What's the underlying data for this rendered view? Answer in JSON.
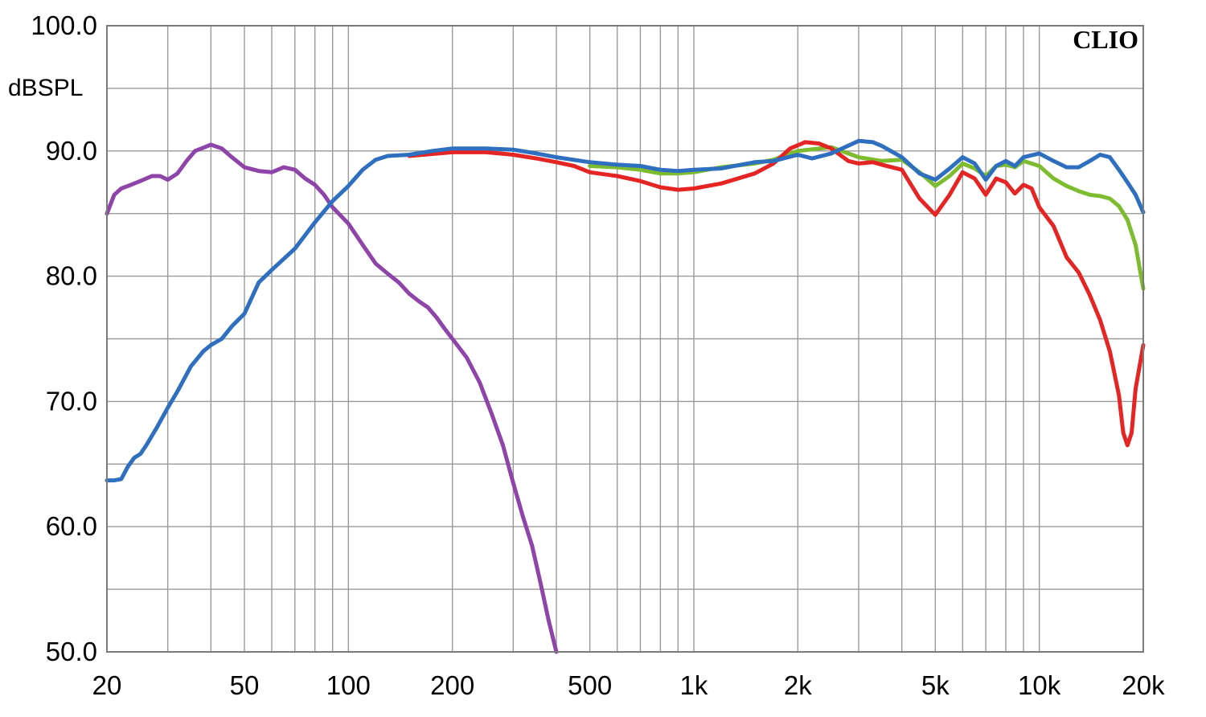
{
  "chart_data": {
    "type": "line",
    "title": "",
    "brand": "CLIO",
    "ylabel": "dBSPL",
    "xlabel": "",
    "x_scale": "log",
    "xlim": [
      20,
      20000
    ],
    "ylim": [
      50,
      100
    ],
    "grid": true,
    "y_ticks": [
      {
        "value": 100,
        "label": "100.0"
      },
      {
        "value": 90,
        "label": "90.0"
      },
      {
        "value": 80,
        "label": "80.0"
      },
      {
        "value": 70,
        "label": "70.0"
      },
      {
        "value": 60,
        "label": "60.0"
      },
      {
        "value": 50,
        "label": "50.0"
      }
    ],
    "x_ticks": [
      {
        "value": 20,
        "label": "20"
      },
      {
        "value": 50,
        "label": "50"
      },
      {
        "value": 100,
        "label": "100"
      },
      {
        "value": 200,
        "label": "200"
      },
      {
        "value": 500,
        "label": "500"
      },
      {
        "value": 1000,
        "label": "1k"
      },
      {
        "value": 2000,
        "label": "2k"
      },
      {
        "value": 5000,
        "label": "5k"
      },
      {
        "value": 10000,
        "label": "10k"
      },
      {
        "value": 20000,
        "label": "20k"
      }
    ],
    "series": [
      {
        "color": "#8e44a8",
        "points": [
          [
            20,
            85.0
          ],
          [
            21,
            86.5
          ],
          [
            22,
            87.0
          ],
          [
            23,
            87.2
          ],
          [
            25,
            87.6
          ],
          [
            27,
            88.0
          ],
          [
            28.5,
            88.0
          ],
          [
            30,
            87.7
          ],
          [
            32,
            88.2
          ],
          [
            34,
            89.2
          ],
          [
            36,
            90.0
          ],
          [
            40,
            90.5
          ],
          [
            43,
            90.2
          ],
          [
            46,
            89.5
          ],
          [
            50,
            88.7
          ],
          [
            55,
            88.4
          ],
          [
            60,
            88.3
          ],
          [
            65,
            88.7
          ],
          [
            70,
            88.5
          ],
          [
            75,
            87.8
          ],
          [
            80,
            87.3
          ],
          [
            85,
            86.5
          ],
          [
            90,
            85.5
          ],
          [
            100,
            84.2
          ],
          [
            110,
            82.5
          ],
          [
            120,
            81.0
          ],
          [
            130,
            80.2
          ],
          [
            140,
            79.5
          ],
          [
            150,
            78.6
          ],
          [
            160,
            78.0
          ],
          [
            170,
            77.5
          ],
          [
            180,
            76.7
          ],
          [
            190,
            75.8
          ],
          [
            200,
            75.0
          ],
          [
            220,
            73.5
          ],
          [
            240,
            71.5
          ],
          [
            260,
            69.0
          ],
          [
            280,
            66.5
          ],
          [
            300,
            63.5
          ],
          [
            320,
            60.8
          ],
          [
            340,
            58.5
          ],
          [
            360,
            55.5
          ],
          [
            380,
            52.5
          ],
          [
            400,
            50.0
          ]
        ]
      },
      {
        "color": "#7dbb2f",
        "points": [
          [
            500,
            88.8
          ],
          [
            600,
            88.7
          ],
          [
            700,
            88.5
          ],
          [
            800,
            88.2
          ],
          [
            900,
            88.2
          ],
          [
            1000,
            88.3
          ],
          [
            1200,
            88.7
          ],
          [
            1500,
            89.0
          ],
          [
            1700,
            89.3
          ],
          [
            2000,
            90.0
          ],
          [
            2500,
            90.3
          ],
          [
            3000,
            89.5
          ],
          [
            3500,
            89.2
          ],
          [
            4000,
            89.3
          ],
          [
            4500,
            88.3
          ],
          [
            5000,
            87.2
          ],
          [
            5500,
            88.0
          ],
          [
            6000,
            89.0
          ],
          [
            6500,
            88.6
          ],
          [
            7000,
            88.0
          ],
          [
            7500,
            88.8
          ],
          [
            8000,
            88.9
          ],
          [
            8500,
            88.7
          ],
          [
            9000,
            89.2
          ],
          [
            10000,
            88.8
          ],
          [
            11000,
            87.8
          ],
          [
            12000,
            87.2
          ],
          [
            13000,
            86.8
          ],
          [
            14000,
            86.5
          ],
          [
            15000,
            86.4
          ],
          [
            16000,
            86.2
          ],
          [
            17000,
            85.6
          ],
          [
            18000,
            84.5
          ],
          [
            19000,
            82.5
          ],
          [
            20000,
            79.0
          ]
        ]
      },
      {
        "color": "#e52424",
        "points": [
          [
            150,
            89.6
          ],
          [
            200,
            89.9
          ],
          [
            250,
            89.9
          ],
          [
            300,
            89.7
          ],
          [
            350,
            89.4
          ],
          [
            400,
            89.1
          ],
          [
            450,
            88.8
          ],
          [
            500,
            88.3
          ],
          [
            600,
            88.0
          ],
          [
            700,
            87.6
          ],
          [
            800,
            87.1
          ],
          [
            900,
            86.9
          ],
          [
            1000,
            87.0
          ],
          [
            1200,
            87.4
          ],
          [
            1500,
            88.2
          ],
          [
            1700,
            89.0
          ],
          [
            1900,
            90.2
          ],
          [
            2100,
            90.7
          ],
          [
            2300,
            90.6
          ],
          [
            2500,
            90.2
          ],
          [
            2800,
            89.2
          ],
          [
            3000,
            89.0
          ],
          [
            3300,
            89.1
          ],
          [
            3500,
            88.9
          ],
          [
            4000,
            88.5
          ],
          [
            4500,
            86.2
          ],
          [
            5000,
            84.9
          ],
          [
            5500,
            86.5
          ],
          [
            6000,
            88.3
          ],
          [
            6500,
            87.8
          ],
          [
            7000,
            86.5
          ],
          [
            7500,
            87.8
          ],
          [
            8000,
            87.5
          ],
          [
            8500,
            86.6
          ],
          [
            9000,
            87.3
          ],
          [
            9500,
            87.0
          ],
          [
            10000,
            85.5
          ],
          [
            11000,
            84.0
          ],
          [
            12000,
            81.5
          ],
          [
            13000,
            80.3
          ],
          [
            14000,
            78.5
          ],
          [
            15000,
            76.5
          ],
          [
            16000,
            74.0
          ],
          [
            17000,
            70.5
          ],
          [
            17500,
            67.5
          ],
          [
            18000,
            66.5
          ],
          [
            18500,
            67.5
          ],
          [
            19000,
            71.0
          ],
          [
            20000,
            74.5
          ]
        ]
      },
      {
        "color": "#2f6fbf",
        "points": [
          [
            20,
            63.7
          ],
          [
            21,
            63.7
          ],
          [
            22,
            63.8
          ],
          [
            23,
            64.8
          ],
          [
            24,
            65.5
          ],
          [
            25,
            65.8
          ],
          [
            26,
            66.5
          ],
          [
            28,
            68.0
          ],
          [
            30,
            69.5
          ],
          [
            32,
            70.8
          ],
          [
            35,
            72.8
          ],
          [
            38,
            74.0
          ],
          [
            40,
            74.5
          ],
          [
            43,
            75.0
          ],
          [
            46,
            76.0
          ],
          [
            50,
            77.0
          ],
          [
            55,
            79.5
          ],
          [
            60,
            80.5
          ],
          [
            70,
            82.2
          ],
          [
            80,
            84.3
          ],
          [
            90,
            86.0
          ],
          [
            100,
            87.2
          ],
          [
            110,
            88.5
          ],
          [
            120,
            89.3
          ],
          [
            130,
            89.6
          ],
          [
            150,
            89.7
          ],
          [
            175,
            90.0
          ],
          [
            200,
            90.2
          ],
          [
            250,
            90.2
          ],
          [
            300,
            90.1
          ],
          [
            350,
            89.8
          ],
          [
            400,
            89.5
          ],
          [
            500,
            89.1
          ],
          [
            600,
            88.9
          ],
          [
            700,
            88.8
          ],
          [
            800,
            88.5
          ],
          [
            900,
            88.4
          ],
          [
            1000,
            88.5
          ],
          [
            1200,
            88.6
          ],
          [
            1500,
            89.1
          ],
          [
            1700,
            89.2
          ],
          [
            2000,
            89.7
          ],
          [
            2200,
            89.4
          ],
          [
            2500,
            89.8
          ],
          [
            3000,
            90.8
          ],
          [
            3300,
            90.7
          ],
          [
            3500,
            90.4
          ],
          [
            4000,
            89.5
          ],
          [
            4500,
            88.2
          ],
          [
            5000,
            87.7
          ],
          [
            5500,
            88.6
          ],
          [
            6000,
            89.5
          ],
          [
            6500,
            89.0
          ],
          [
            7000,
            87.7
          ],
          [
            7500,
            88.8
          ],
          [
            8000,
            89.2
          ],
          [
            8500,
            88.8
          ],
          [
            9000,
            89.5
          ],
          [
            10000,
            89.8
          ],
          [
            11000,
            89.2
          ],
          [
            12000,
            88.7
          ],
          [
            13000,
            88.7
          ],
          [
            14000,
            89.2
          ],
          [
            15000,
            89.7
          ],
          [
            16000,
            89.5
          ],
          [
            17000,
            88.5
          ],
          [
            18000,
            87.5
          ],
          [
            19000,
            86.5
          ],
          [
            20000,
            85.1
          ]
        ]
      }
    ]
  }
}
